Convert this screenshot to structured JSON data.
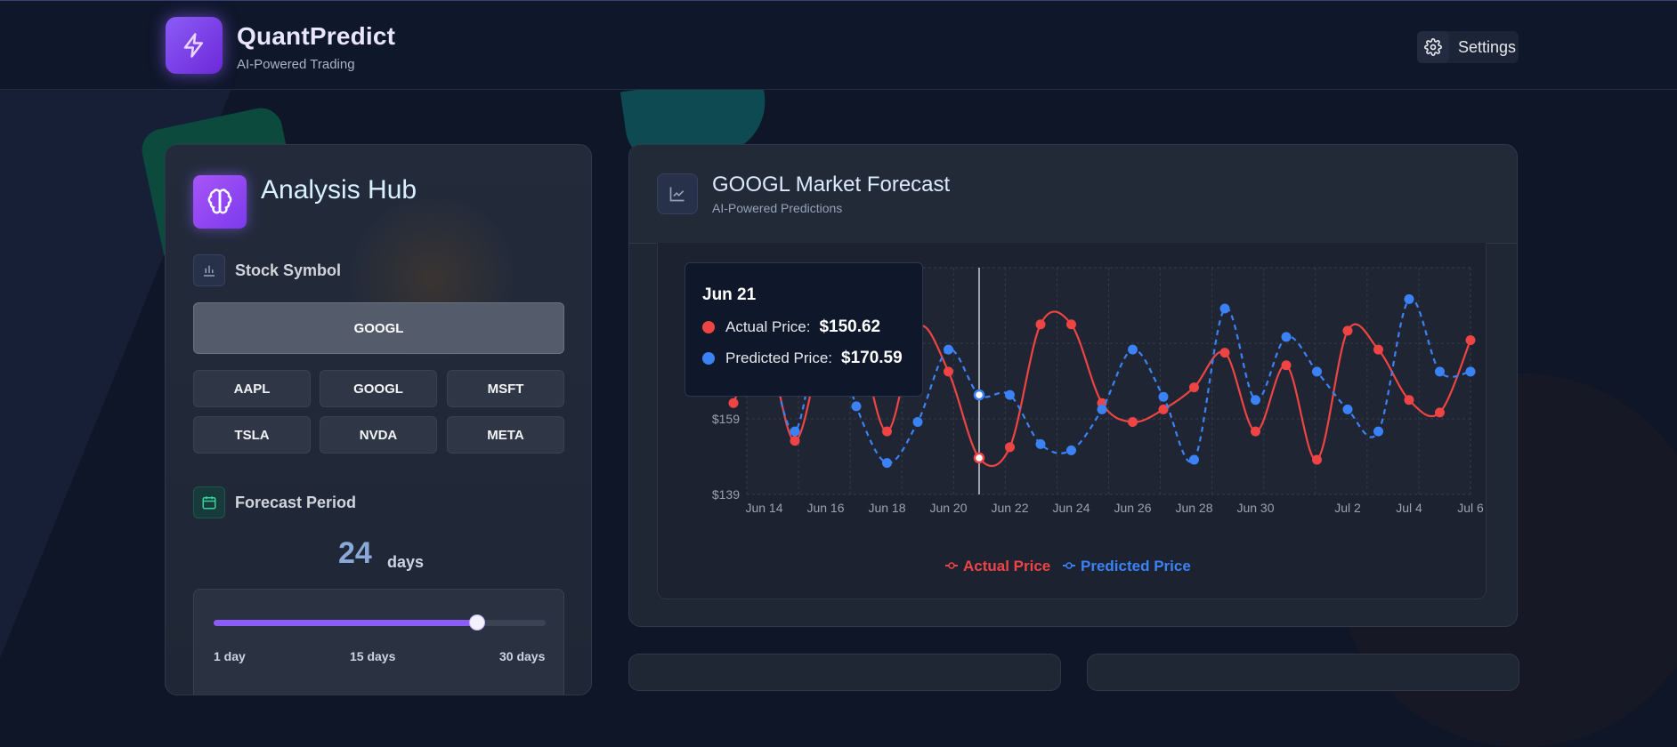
{
  "header": {
    "brand_title": "QuantPredict",
    "brand_subtitle": "AI-Powered Trading",
    "settings_label": "Settings"
  },
  "analysis_hub": {
    "title": "Analysis Hub",
    "stock_symbol_label": "Stock Symbol",
    "selected_symbol": "GOOGL",
    "symbols": [
      "AAPL",
      "GOOGL",
      "MSFT",
      "TSLA",
      "NVDA",
      "META"
    ],
    "forecast_period_label": "Forecast Period",
    "forecast_days": "24",
    "days_unit": "days",
    "slider": {
      "min_label": "1 day",
      "mid_label": "15 days",
      "max_label": "30 days",
      "min": 1,
      "max": 30,
      "value": 24
    }
  },
  "forecast": {
    "title": "GOOGL Market Forecast",
    "subtitle": "AI-Powered Predictions",
    "tooltip": {
      "date": "Jun 21",
      "actual_label": "Actual Price:",
      "actual_value": "$150.62",
      "predicted_label": "Predicted Price:",
      "predicted_value": "$170.59"
    },
    "legend": {
      "actual": "Actual Price",
      "predicted": "Predicted Price"
    }
  },
  "colors": {
    "actual": "#ef4444",
    "predicted": "#3b82f6",
    "accent": "#8b5cf6"
  },
  "chart_data": {
    "type": "line",
    "x": [
      "Jun 13",
      "Jun 14",
      "Jun 15",
      "Jun 16",
      "Jun 17",
      "Jun 18",
      "Jun 19",
      "Jun 20",
      "Jun 21",
      "Jun 22",
      "Jun 23",
      "Jun 24",
      "Jun 25",
      "Jun 26",
      "Jun 27",
      "Jun 28",
      "Jun 29",
      "Jun 30",
      "Jun 31",
      "Jul 1",
      "Jul 2",
      "Jul 3",
      "Jul 4",
      "Jul 5",
      "Jul 6"
    ],
    "x_tick_labels": [
      "Jun 14",
      "Jun 16",
      "Jun 18",
      "Jun 20",
      "Jun 22",
      "Jun 24",
      "Jun 26",
      "Jun 28",
      "Jun 30",
      "Jul 2",
      "Jul 4",
      "Jul 6"
    ],
    "y_tick_labels": [
      "$139",
      "$159"
    ],
    "ylim": [
      139,
      211
    ],
    "series": [
      {
        "name": "Actual Price",
        "values": [
          168,
          188,
          156,
          189,
          190,
          159,
          192,
          178,
          150.6,
          154,
          193,
          193,
          168,
          162,
          166,
          173,
          184,
          159,
          180,
          150,
          191,
          185,
          169,
          165,
          188
        ]
      },
      {
        "name": "Predicted Price",
        "values": [
          180,
          186,
          159,
          198,
          167,
          149,
          162,
          185,
          170.6,
          170.6,
          155,
          153,
          166,
          185,
          170,
          150,
          198,
          169,
          189,
          178,
          166,
          159,
          201,
          178,
          178
        ]
      }
    ],
    "grid": true,
    "legend_position": "bottom-center"
  }
}
